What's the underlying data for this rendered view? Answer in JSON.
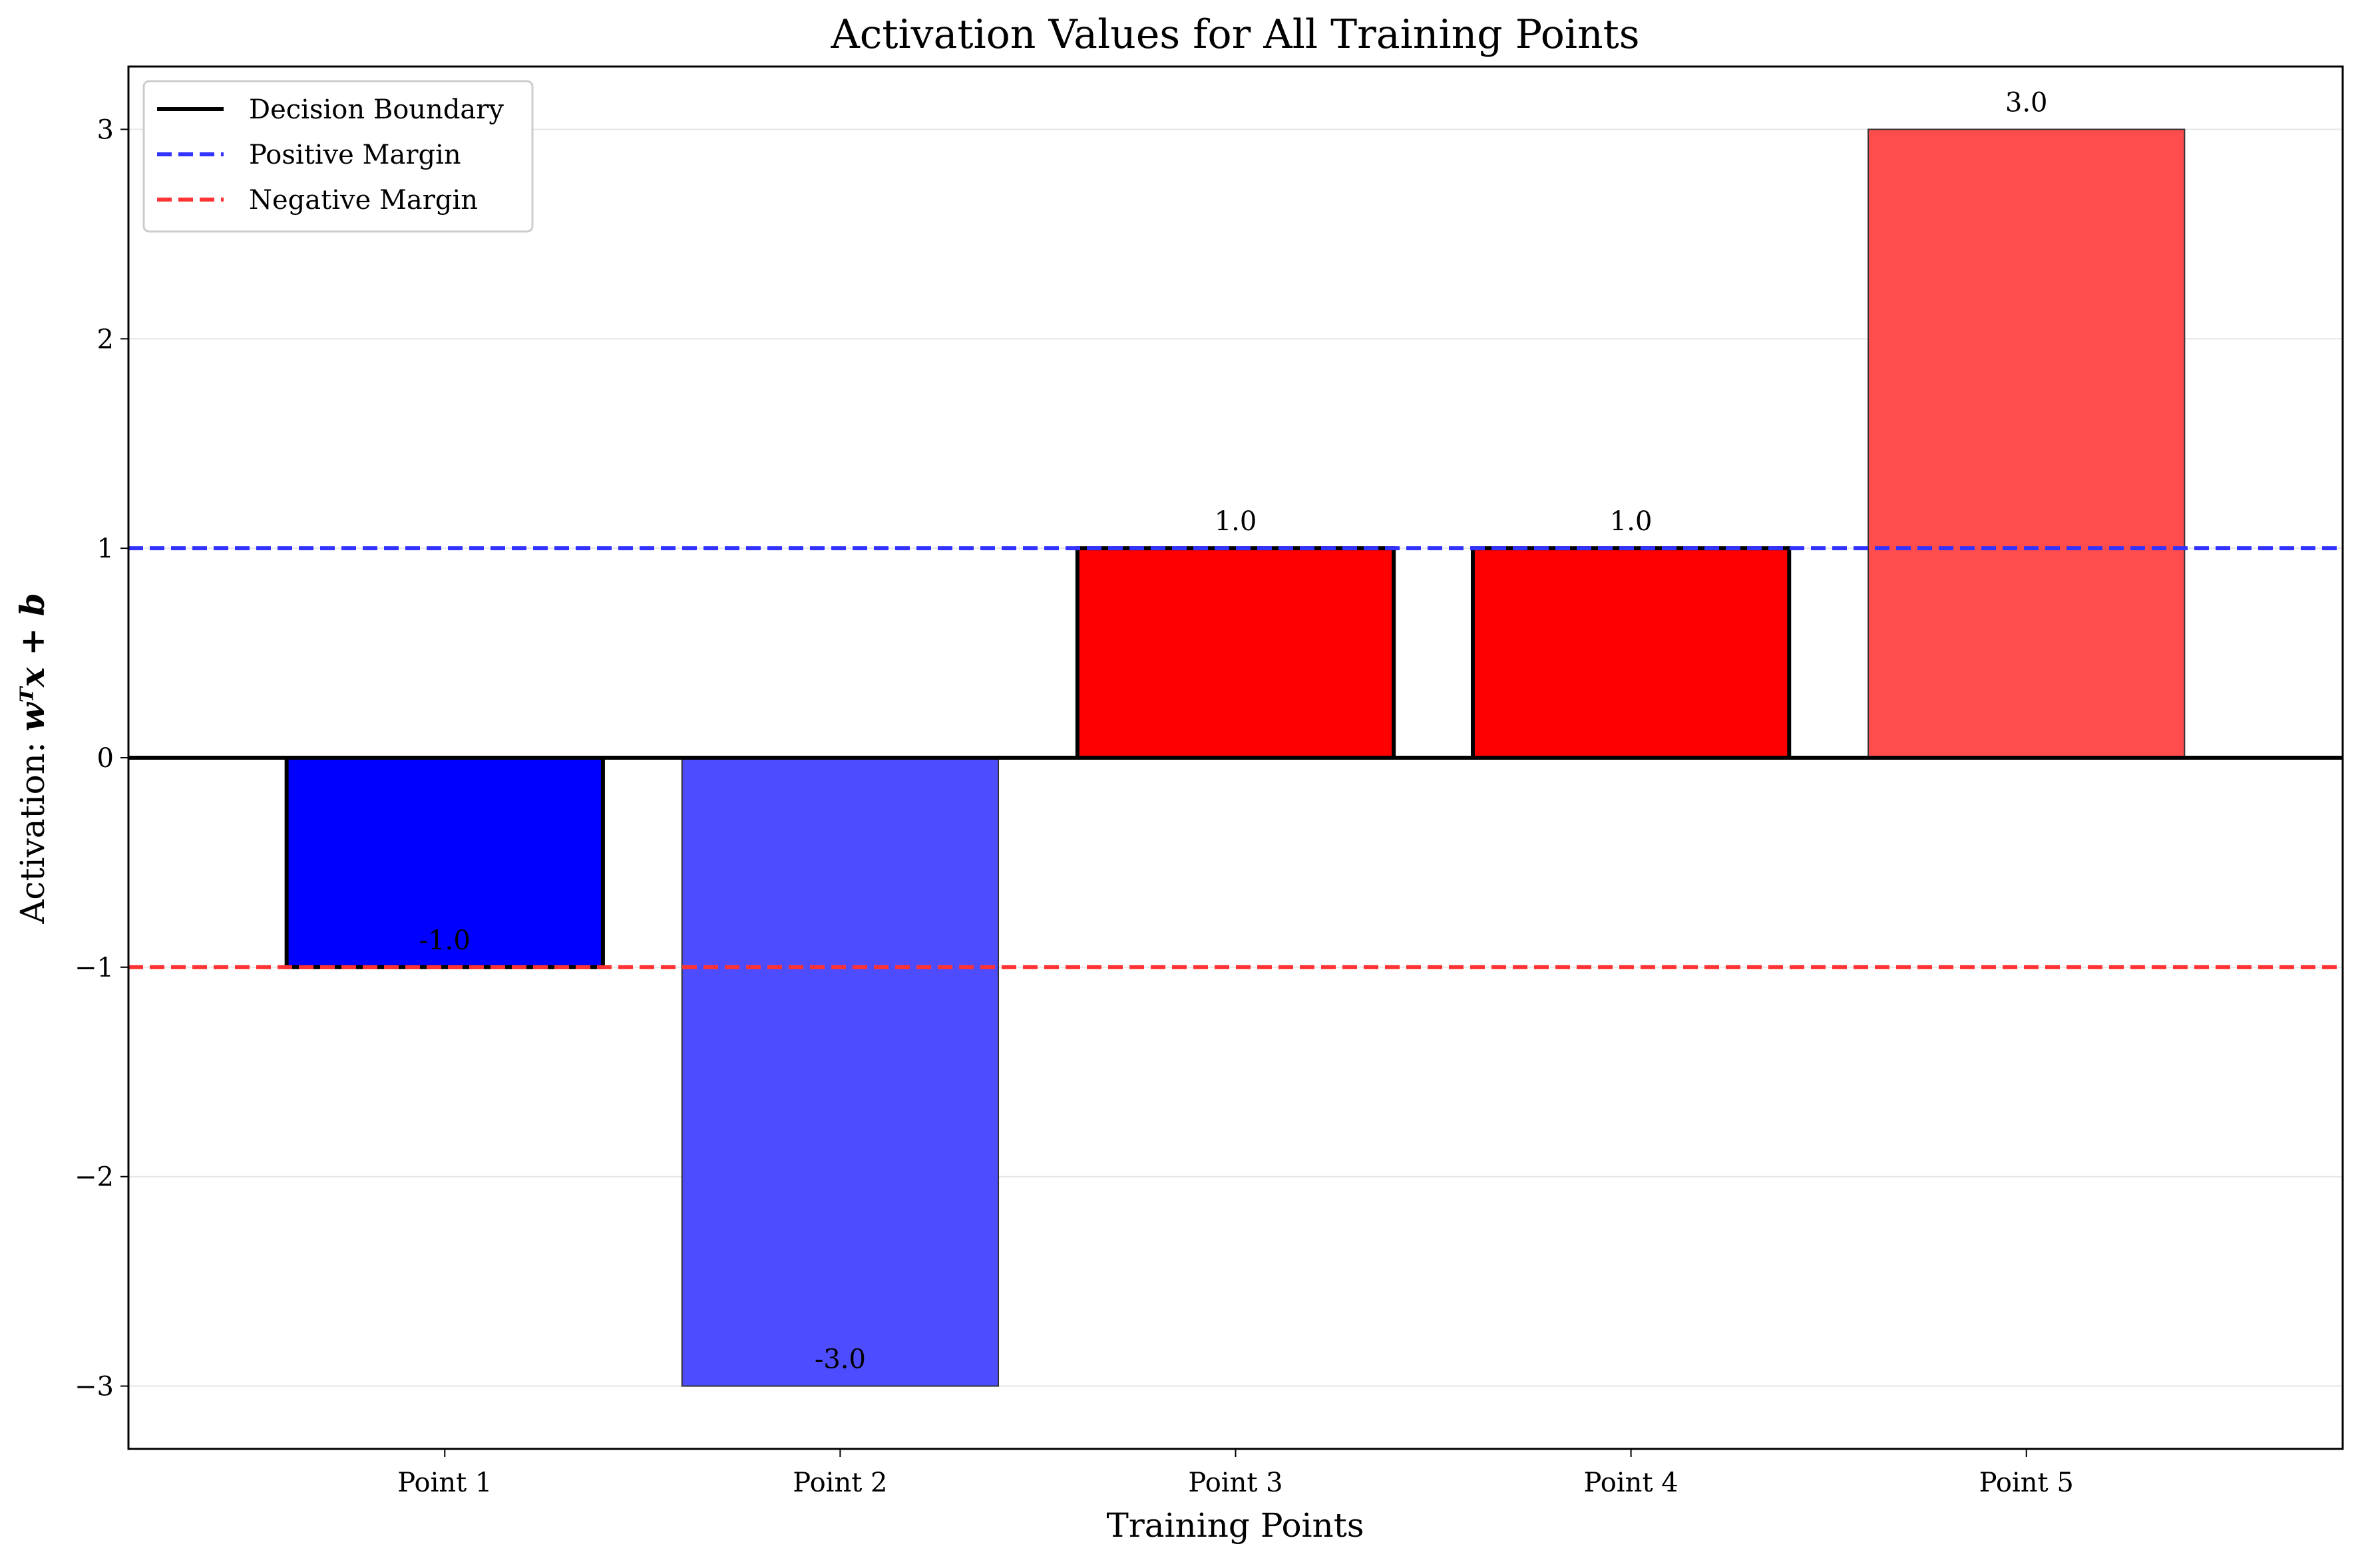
{
  "chart_data": {
    "type": "bar",
    "title": "Activation Values for All Training Points",
    "xlabel": "Training Points",
    "ylabel_prefix": "Activation: ",
    "ylabel_math": "wᵀx + b",
    "categories": [
      "Point 1",
      "Point 2",
      "Point 3",
      "Point 4",
      "Point 5"
    ],
    "values": [
      -1.0,
      -3.0,
      1.0,
      1.0,
      3.0
    ],
    "data_labels": [
      "-1.0",
      "-3.0",
      "1.0",
      "1.0",
      "3.0"
    ],
    "bar_colors": [
      "#0000ff",
      "#4d4dff",
      "#ff0000",
      "#ff0000",
      "#ff4d4d"
    ],
    "bar_edge_emphasis": [
      true,
      false,
      true,
      true,
      false
    ],
    "ylim": [
      -3.3,
      3.3
    ],
    "yticks": [
      -3,
      -2,
      -1,
      0,
      1,
      2,
      3
    ],
    "ytick_labels": [
      "−3",
      "−2",
      "−1",
      "0",
      "1",
      "2",
      "3"
    ],
    "grid": "y",
    "reference_lines": [
      {
        "name": "Decision Boundary",
        "y": 0,
        "color": "#000000",
        "style": "solid"
      },
      {
        "name": "Positive Margin",
        "y": 1,
        "color": "#3333ff",
        "style": "dashed"
      },
      {
        "name": "Negative Margin",
        "y": -1,
        "color": "#ff3333",
        "style": "dashed"
      }
    ],
    "legend": {
      "placement": "top-left",
      "entries": [
        "Decision Boundary",
        "Positive Margin",
        "Negative Margin"
      ]
    }
  }
}
